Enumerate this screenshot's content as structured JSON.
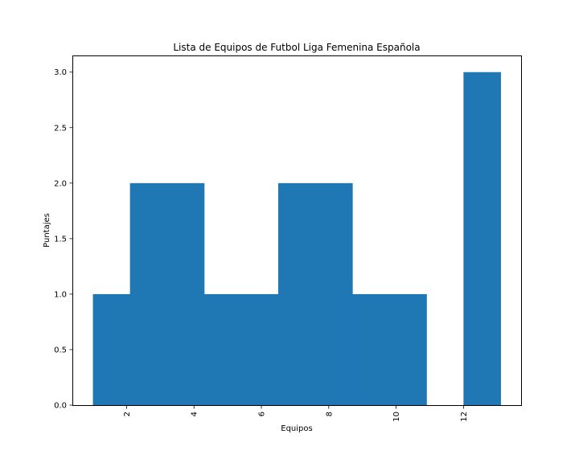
{
  "chart_data": {
    "type": "bar",
    "title": "Lista de Equipos de Futbol Liga Femenina Española",
    "xlabel": "Equipos",
    "ylabel": "Puntajes",
    "bar_color": "#1f77b4",
    "bins": [
      {
        "start": 1.0,
        "end": 2.1,
        "value": 1
      },
      {
        "start": 2.1,
        "end": 4.3,
        "value": 2
      },
      {
        "start": 4.3,
        "end": 6.5,
        "value": 1
      },
      {
        "start": 6.5,
        "end": 8.7,
        "value": 2
      },
      {
        "start": 8.7,
        "end": 10.9,
        "value": 1
      },
      {
        "start": 10.9,
        "end": 12.0,
        "value": 0
      },
      {
        "start": 12.0,
        "end": 13.1,
        "value": 3
      }
    ],
    "xlim": [
      0.39,
      13.71
    ],
    "ylim": [
      0,
      3.15
    ],
    "xticks": [
      2,
      4,
      6,
      8,
      10,
      12
    ],
    "xtick_labels": [
      "2",
      "4",
      "6",
      "8",
      "10",
      "12"
    ],
    "xtick_rotation": "vertical",
    "yticks": [
      0,
      0.5,
      1,
      1.5,
      2,
      2.5,
      3
    ],
    "ytick_labels": [
      "0.0",
      "0.5",
      "1.0",
      "1.5",
      "2.0",
      "2.5",
      "3.0"
    ],
    "grid": false,
    "legend": "none"
  }
}
